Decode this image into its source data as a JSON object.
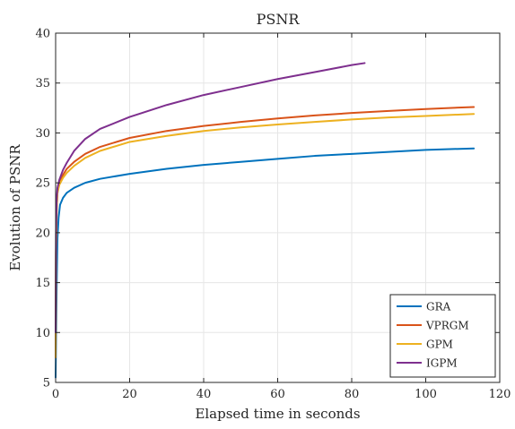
{
  "chart_data": {
    "type": "line",
    "title": "PSNR",
    "xlabel": "Elapsed time in seconds",
    "ylabel": "Evolution of PSNR",
    "xlim": [
      0,
      120
    ],
    "ylim": [
      5,
      40
    ],
    "xticks": [
      0,
      20,
      40,
      60,
      80,
      100,
      120
    ],
    "yticks": [
      5,
      10,
      15,
      20,
      25,
      30,
      35,
      40
    ],
    "grid": true,
    "legend_position": "bottom-right",
    "series": [
      {
        "name": "GRA",
        "color": "#0072bd",
        "x": [
          0.0,
          0.1,
          0.3,
          0.5,
          0.8,
          1.2,
          2,
          3,
          5,
          8,
          12,
          20,
          30,
          40,
          50,
          60,
          70,
          80,
          90,
          100,
          113
        ],
        "y": [
          5.5,
          9.0,
          15.0,
          19.5,
          21.5,
          22.8,
          23.5,
          24.0,
          24.5,
          25.0,
          25.4,
          25.9,
          26.4,
          26.8,
          27.1,
          27.4,
          27.7,
          27.9,
          28.1,
          28.3,
          28.45
        ]
      },
      {
        "name": "VPRGM",
        "color": "#d95319",
        "x": [
          0.0,
          0.1,
          0.3,
          0.5,
          1,
          2,
          3,
          5,
          8,
          12,
          20,
          30,
          40,
          50,
          60,
          70,
          80,
          90,
          100,
          113
        ],
        "y": [
          7.5,
          18.0,
          22.5,
          24.0,
          25.0,
          25.8,
          26.4,
          27.1,
          27.9,
          28.6,
          29.5,
          30.2,
          30.7,
          31.1,
          31.45,
          31.75,
          32.0,
          32.2,
          32.4,
          32.6
        ]
      },
      {
        "name": "GPM",
        "color": "#edb120",
        "x": [
          0.0,
          0.1,
          0.3,
          0.5,
          1,
          2,
          3,
          5,
          8,
          12,
          20,
          30,
          40,
          50,
          60,
          70,
          80,
          90,
          100,
          113
        ],
        "y": [
          7.5,
          18.0,
          22.5,
          24.0,
          24.8,
          25.5,
          26.0,
          26.7,
          27.5,
          28.2,
          29.1,
          29.7,
          30.2,
          30.55,
          30.85,
          31.1,
          31.35,
          31.55,
          31.7,
          31.9
        ]
      },
      {
        "name": "IGPM",
        "color": "#7e2f8e",
        "x": [
          0.0,
          0.1,
          0.3,
          0.5,
          1,
          2,
          3,
          5,
          8,
          12,
          20,
          30,
          40,
          50,
          60,
          70,
          80,
          83.5
        ],
        "y": [
          10.0,
          20.0,
          23.5,
          24.5,
          25.3,
          26.3,
          27.0,
          28.2,
          29.4,
          30.4,
          31.6,
          32.8,
          33.8,
          34.6,
          35.4,
          36.1,
          36.8,
          37.0
        ]
      }
    ]
  }
}
